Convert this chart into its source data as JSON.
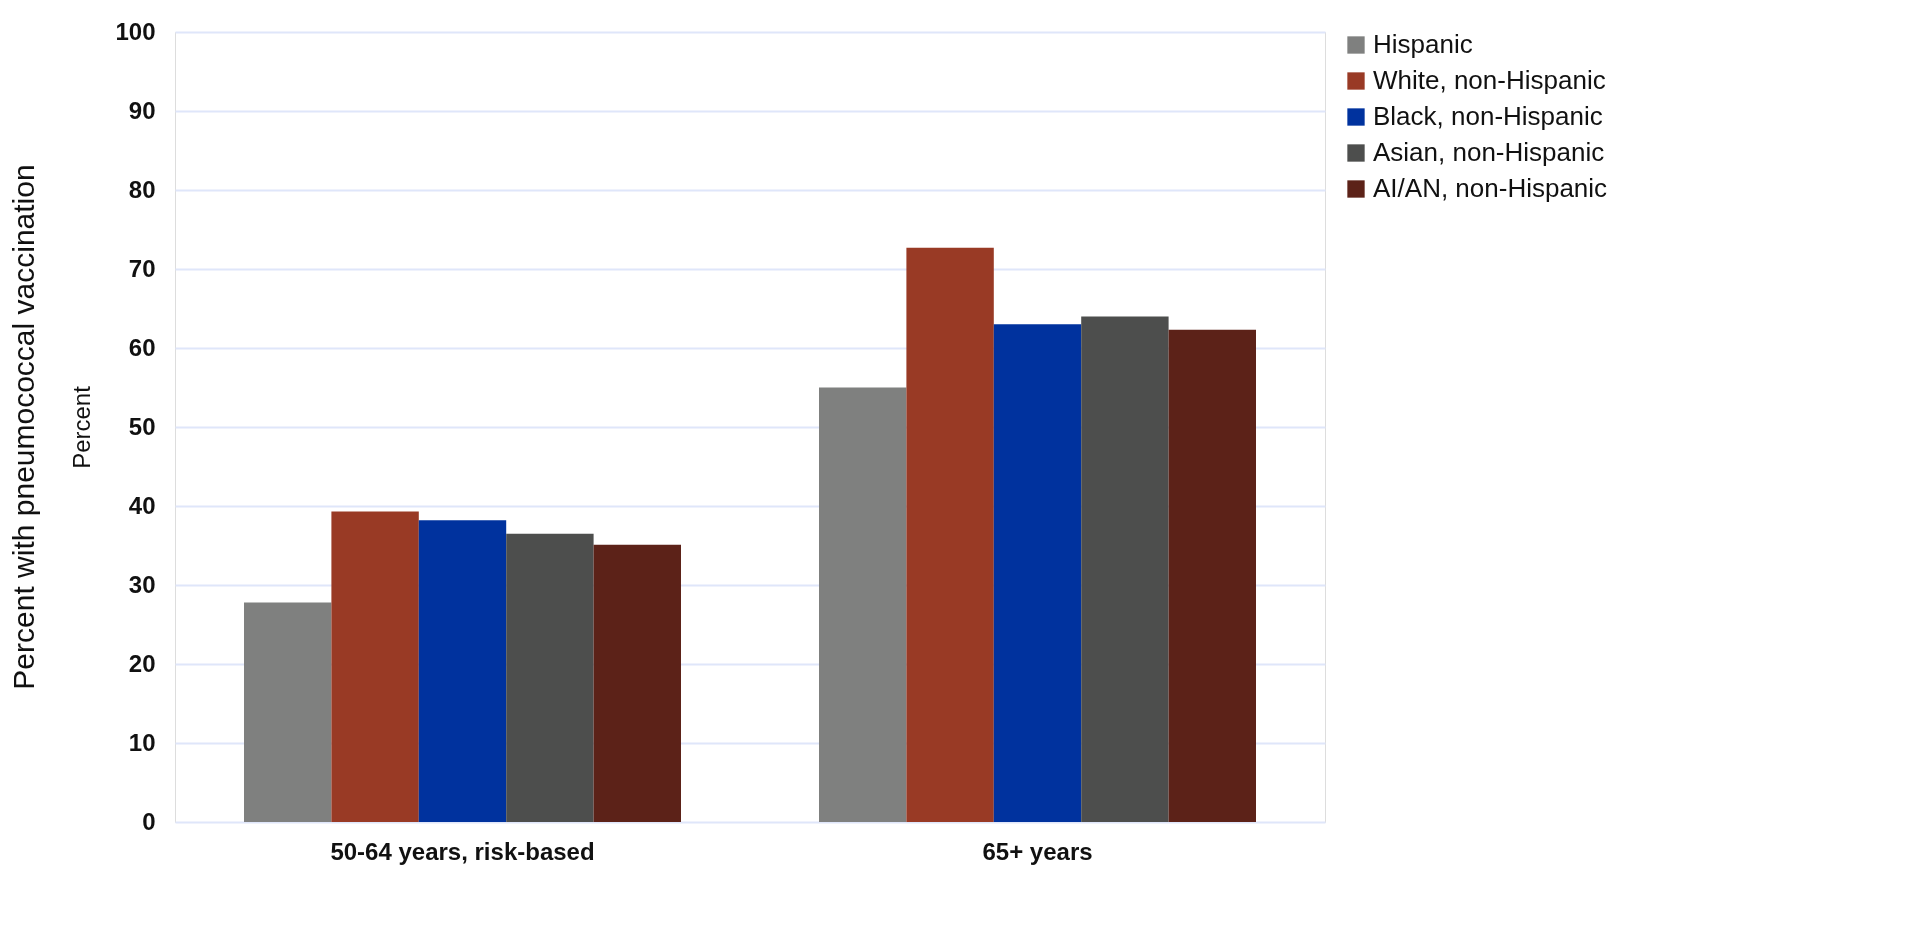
{
  "chart_data": {
    "type": "bar",
    "ylabel": "Percent",
    "annotations": [
      "Percent with pneumococcal vaccination"
    ],
    "categories": [
      "50-64 years, risk-based",
      "65+ years"
    ],
    "series": [
      {
        "name": "Hispanic",
        "color": "#7f807f",
        "values": [
          27.8,
          55.0
        ]
      },
      {
        "name": "White, non-Hispanic",
        "color": "#993a25",
        "values": [
          39.3,
          72.7
        ]
      },
      {
        "name": "Black, non-Hispanic",
        "color": "#00329e",
        "values": [
          38.2,
          63.0
        ]
      },
      {
        "name": "Asian, non-Hispanic",
        "color": "#4d4e4d",
        "values": [
          36.5,
          64.0
        ]
      },
      {
        "name": "AI/AN, non-Hispanic",
        "color": "#5c2218",
        "values": [
          35.1,
          62.3
        ]
      }
    ],
    "ylim": [
      0,
      100
    ],
    "yticks": [
      0,
      10,
      20,
      30,
      40,
      50,
      60,
      70,
      80,
      90,
      100
    ],
    "grid": "y",
    "legend": "right"
  }
}
